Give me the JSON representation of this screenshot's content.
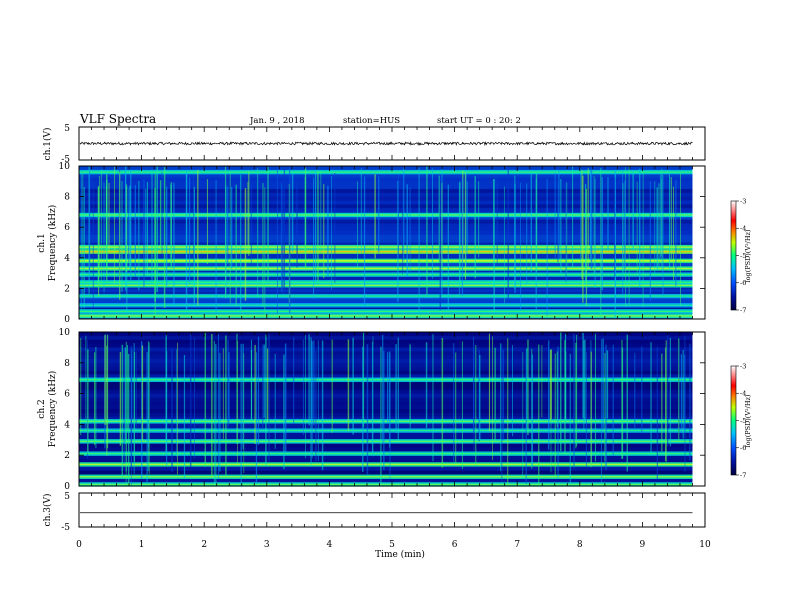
{
  "header": {
    "title": "VLF Spectra",
    "date": "Jan. 9 , 2018",
    "station": "station=HUS",
    "start": "start UT =  0 : 20: 2"
  },
  "chart_data": [
    {
      "type": "line",
      "panel": "ch1-waveform",
      "ylabel": "ch.1(V)",
      "yticks": [
        "5",
        "-5"
      ],
      "ylim": [
        -5,
        5
      ],
      "xlim": [
        0,
        10
      ],
      "baseline_value": 0,
      "noise_amplitude": 0.4,
      "signal_end_min": 9.8,
      "grid": false
    },
    {
      "type": "heatmap",
      "panel": "ch1-spectrogram",
      "ylabel": "ch.1 Frequency (kHz)",
      "ylabel_line1": "ch.1",
      "ylabel_line2": "Frequency (kHz)",
      "yticks": [
        "0",
        "2",
        "4",
        "6",
        "8",
        "10"
      ],
      "ylim": [
        0,
        10
      ],
      "xlim": [
        0,
        10
      ],
      "data_end_min": 9.8,
      "background_log_psd": -6.3,
      "bands": [
        {
          "f_khz": 0.2,
          "level": -5.3
        },
        {
          "f_khz": 0.5,
          "level": -5.5
        },
        {
          "f_khz": 0.9,
          "level": -5.7
        },
        {
          "f_khz": 1.5,
          "level": -5.6
        },
        {
          "f_khz": 2.2,
          "level": -5.3
        },
        {
          "f_khz": 2.4,
          "level": -5.5
        },
        {
          "f_khz": 2.9,
          "level": -5.5
        },
        {
          "f_khz": 3.3,
          "level": -5.2
        },
        {
          "f_khz": 3.8,
          "level": -5.1
        },
        {
          "f_khz": 4.4,
          "level": -4.9
        },
        {
          "f_khz": 4.7,
          "level": -5.2
        },
        {
          "f_khz": 6.8,
          "level": -5.4
        },
        {
          "f_khz": 9.6,
          "level": -5.5
        }
      ],
      "colorbar": {
        "label": "log(PSD)(V²/Hz)",
        "ticks": [
          "-3",
          "-4",
          "-5",
          "-6",
          "-7"
        ],
        "range": [
          -7,
          -3
        ]
      }
    },
    {
      "type": "heatmap",
      "panel": "ch2-spectrogram",
      "ylabel": "ch.2 Frequency (kHz)",
      "ylabel_line1": "ch.2",
      "ylabel_line2": "Frequency (kHz)",
      "yticks": [
        "0",
        "2",
        "4",
        "6",
        "8",
        "10"
      ],
      "ylim": [
        0,
        10
      ],
      "xlim": [
        0,
        10
      ],
      "data_end_min": 9.8,
      "background_log_psd": -6.5,
      "bands": [
        {
          "f_khz": 0.1,
          "level": -5.4
        },
        {
          "f_khz": 0.6,
          "level": -5.3
        },
        {
          "f_khz": 1.4,
          "level": -5.2
        },
        {
          "f_khz": 2.1,
          "level": -5.5
        },
        {
          "f_khz": 2.9,
          "level": -5.4
        },
        {
          "f_khz": 3.6,
          "level": -5.6
        },
        {
          "f_khz": 4.2,
          "level": -5.4
        },
        {
          "f_khz": 6.9,
          "level": -5.5
        }
      ],
      "colorbar": {
        "label": "log(PSD)(V²/Hz)",
        "ticks": [
          "-3",
          "-4",
          "-5",
          "-6",
          "-7"
        ],
        "range": [
          -7,
          -3
        ]
      }
    },
    {
      "type": "line",
      "panel": "ch3-waveform",
      "ylabel": "ch.3(V)",
      "yticks": [
        "5",
        "-5"
      ],
      "ylim": [
        -5,
        5
      ],
      "xlim": [
        0,
        10
      ],
      "baseline_value": -0.8,
      "noise_amplitude": 0,
      "signal_end_min": 9.8,
      "xlabel": "Time (min)",
      "xticks": [
        "0",
        "1",
        "2",
        "3",
        "4",
        "5",
        "6",
        "7",
        "8",
        "9",
        "10"
      ],
      "grid": false
    }
  ],
  "colors": {
    "axis": "#000000",
    "waveform": "#000000",
    "colormap": [
      "#000033",
      "#00007a",
      "#0033cc",
      "#0099ff",
      "#00e6cc",
      "#33ff66",
      "#ffff00",
      "#ff8000",
      "#ff0000",
      "#ff9999",
      "#ffffff"
    ]
  }
}
